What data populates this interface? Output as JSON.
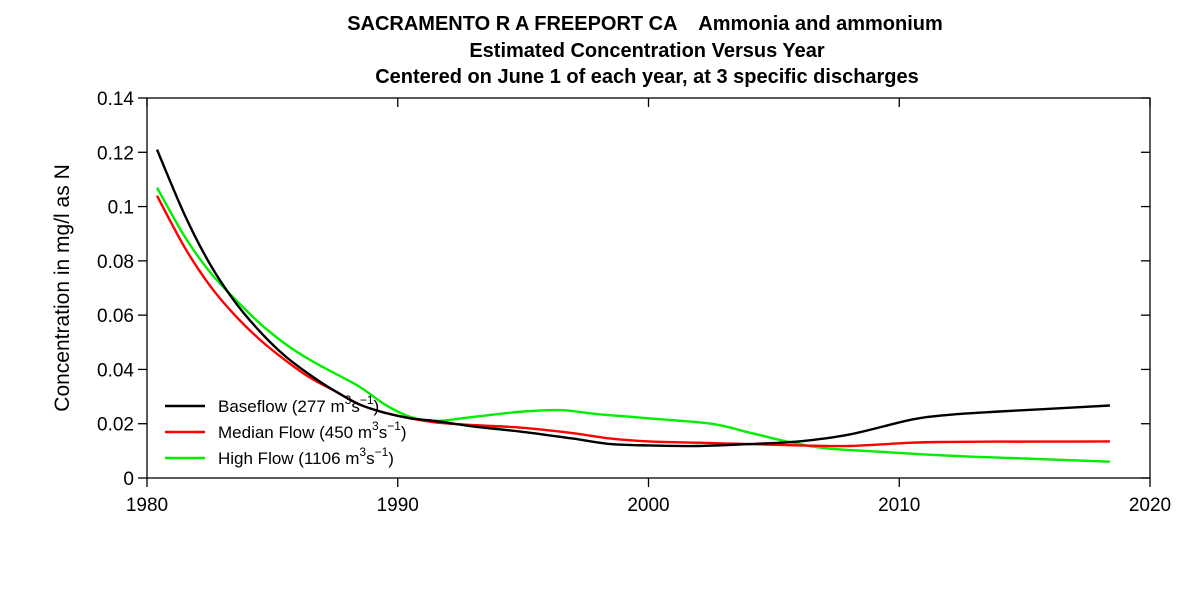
{
  "chart_data": {
    "type": "line",
    "title": "SACRAMENTO R A FREEPORT CA    Ammonia and ammonium",
    "subtitle": "Estimated Concentration Versus Year",
    "subtitle2": "Centered on June 1 of each year, at 3 specific discharges",
    "xlabel": "",
    "ylabel": "Concentration in mg/l as N",
    "xlim": [
      1980,
      2020
    ],
    "ylim": [
      0,
      0.14
    ],
    "xticks": [
      1980,
      1990,
      2000,
      2010,
      2020
    ],
    "yticks": [
      0,
      0.02,
      0.04,
      0.06,
      0.08,
      0.1,
      0.12,
      0.14
    ],
    "grid": false,
    "legend_position": "bottom-left",
    "series": [
      {
        "name": "Baseflow (277 m3s-1)",
        "legend": {
          "pre": "Baseflow (277 m",
          "sup1": "3",
          "mid": "s",
          "sup2": "−1",
          "post": ")"
        },
        "color": "#000000",
        "x": [
          1980.4,
          1981.5,
          1982.5,
          1983.5,
          1984.5,
          1985.5,
          1986.5,
          1987.5,
          1988.5,
          1989.5,
          1990.5,
          1991.5,
          1993,
          1995,
          1997,
          1998.5,
          2000,
          2002,
          2004,
          2006,
          2008,
          2010.5,
          2012,
          2014,
          2016,
          2018.4
        ],
        "y": [
          0.121,
          0.097,
          0.079,
          0.065,
          0.054,
          0.045,
          0.038,
          0.032,
          0.027,
          0.024,
          0.022,
          0.021,
          0.019,
          0.017,
          0.0145,
          0.0125,
          0.012,
          0.0118,
          0.0125,
          0.0135,
          0.016,
          0.0215,
          0.0233,
          0.0245,
          0.0255,
          0.0267
        ]
      },
      {
        "name": "Median Flow (450 m3s-1)",
        "legend": {
          "pre": "Median Flow (450 m",
          "sup1": "3",
          "mid": "s",
          "sup2": "−1",
          "post": ")"
        },
        "color": "#ff0000",
        "x": [
          1980.4,
          1981.5,
          1982.5,
          1983.5,
          1984.5,
          1985.5,
          1986.5,
          1987.5,
          1988.5,
          1989.5,
          1990.5,
          1991.5,
          1993,
          1995,
          1997,
          1998.5,
          2000,
          2002,
          2004,
          2006,
          2008,
          2010.5,
          2012,
          2014,
          2016,
          2018.4
        ],
        "y": [
          0.104,
          0.085,
          0.071,
          0.06,
          0.051,
          0.0435,
          0.037,
          0.032,
          0.027,
          0.024,
          0.022,
          0.0205,
          0.0195,
          0.0185,
          0.0165,
          0.0145,
          0.0135,
          0.013,
          0.0125,
          0.012,
          0.0118,
          0.013,
          0.0133,
          0.0134,
          0.0134,
          0.0135
        ]
      },
      {
        "name": "High Flow (1106 m3s-1)",
        "legend": {
          "pre": "High Flow (1106 m",
          "sup1": "3",
          "mid": "s",
          "sup2": "−1",
          "post": ")"
        },
        "color": "#00ee00",
        "x": [
          1980.4,
          1981.5,
          1982.5,
          1983.5,
          1984.5,
          1985.5,
          1986.5,
          1987.5,
          1988.5,
          1989.5,
          1990.5,
          1991.5,
          1993,
          1995,
          1996.5,
          1998,
          2000,
          2002.5,
          2004,
          2005.5,
          2007,
          2009,
          2011,
          2013,
          2015,
          2018.4
        ],
        "y": [
          0.107,
          0.089,
          0.076,
          0.066,
          0.057,
          0.0495,
          0.0435,
          0.0385,
          0.0335,
          0.027,
          0.0225,
          0.021,
          0.0225,
          0.0245,
          0.025,
          0.0235,
          0.022,
          0.02,
          0.0168,
          0.0135,
          0.011,
          0.0098,
          0.0087,
          0.0078,
          0.0072,
          0.006
        ]
      }
    ]
  }
}
